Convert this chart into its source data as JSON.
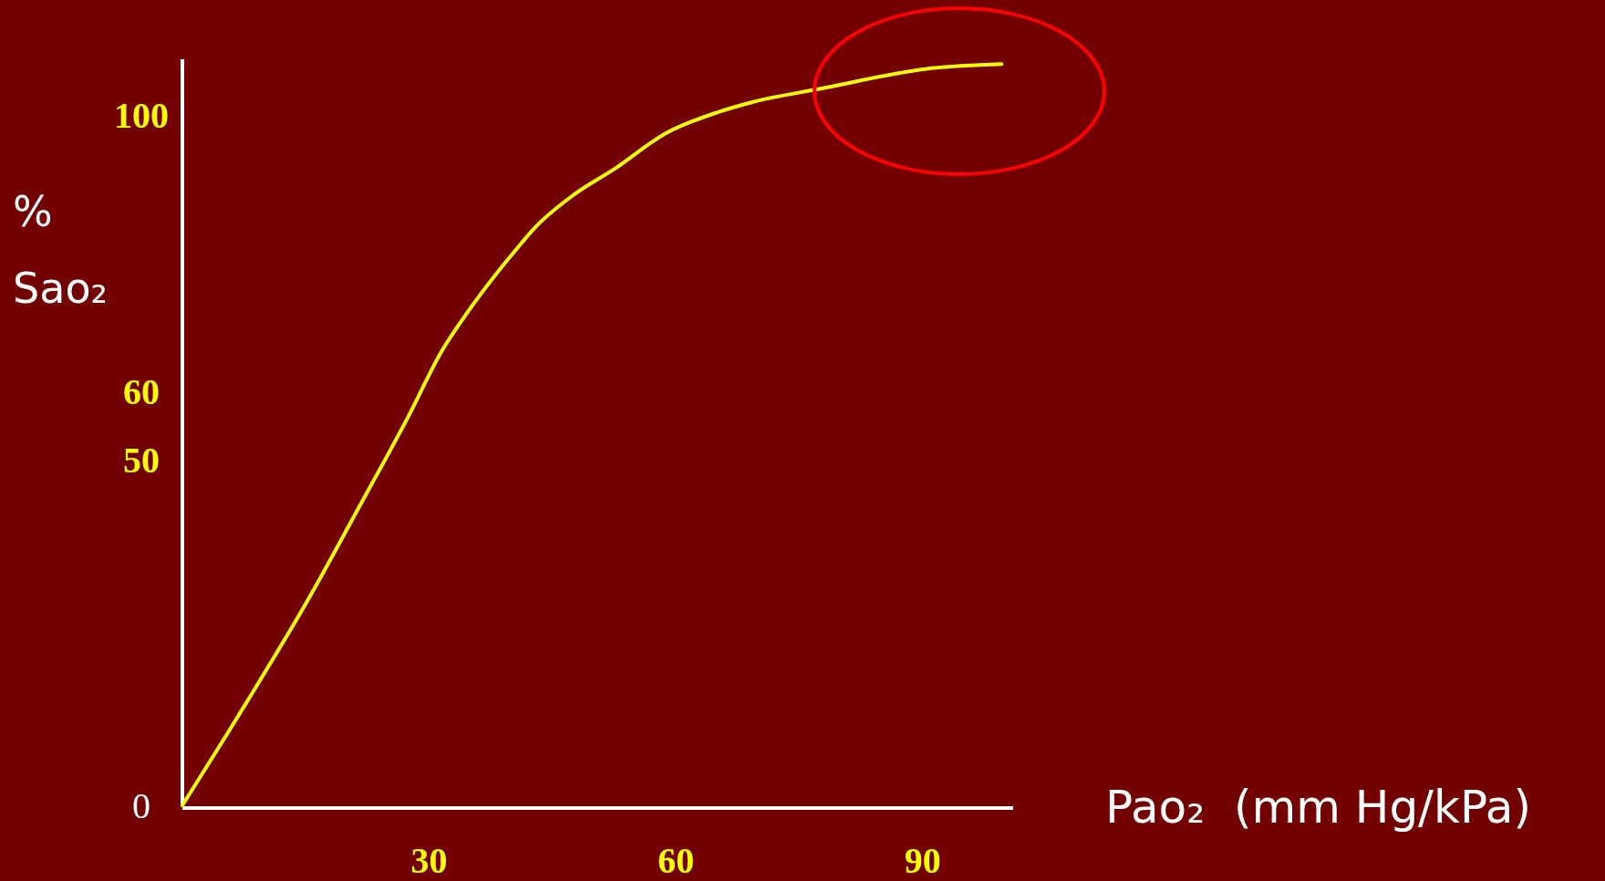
{
  "chart_data": {
    "type": "line",
    "xlabel": "Pao₂  (mm Hg/kPa)",
    "ylabel": "% Sao₂",
    "xlim": [
      0,
      101
    ],
    "ylim": [
      0,
      108
    ],
    "xticks": [
      30,
      60,
      90
    ],
    "yticks": [
      0,
      50,
      60,
      100
    ],
    "grid": false,
    "line_style": "solid",
    "series": [
      {
        "color": "#ffff00",
        "x": [
          0,
          7.7,
          15.2,
          21.4,
          27.6,
          31.4,
          35.1,
          41.3,
          42.6,
          47.6,
          52.5,
          58.8,
          65,
          69.3,
          77.4,
          91.1,
          99.6
        ],
        "values": [
          0,
          14.7,
          29.6,
          43,
          56.6,
          65.5,
          72.1,
          81.5,
          83.3,
          88.4,
          92.1,
          97.3,
          100.3,
          101.8,
          103.7,
          106.7,
          107.3
        ]
      }
    ]
  }
}
